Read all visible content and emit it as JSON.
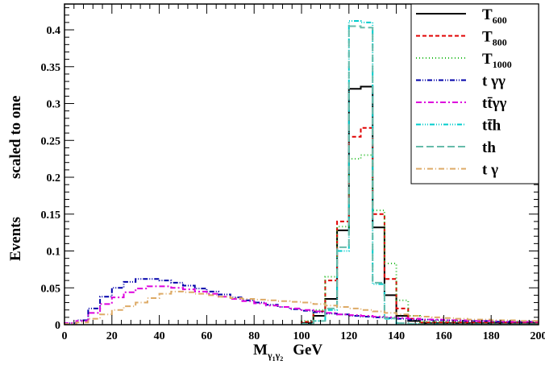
{
  "chart_data": {
    "type": "line",
    "style": "step-histogram",
    "xlabel": {
      "base": "M",
      "sub1": "γ",
      "sub1b": "1",
      "sub2": "γ",
      "sub2b": "2",
      "unit": "GeV"
    },
    "ylabel": {
      "part1": "Events",
      "part2": "scaled to one"
    },
    "xlim": [
      0,
      200
    ],
    "ylim": [
      0,
      0.435
    ],
    "x_ticks": [
      0,
      20,
      40,
      60,
      80,
      100,
      120,
      140,
      160,
      180,
      200
    ],
    "y_ticks": [
      0,
      0.05,
      0.1,
      0.15,
      0.2,
      0.25,
      0.3,
      0.35,
      0.4
    ],
    "y_tick_labels": [
      "0",
      "0.05",
      "0.1",
      "0.15",
      "0.2",
      "0.25",
      "0.3",
      "0.35",
      "0.4"
    ],
    "legend_position": "top-right",
    "grid": false,
    "series": [
      {
        "name": "T600",
        "label_main": "T",
        "label_sub": "600",
        "color": "#000000",
        "dash": "",
        "edges": [
          100,
          105,
          110,
          115,
          120,
          125,
          130,
          135,
          140,
          145,
          150,
          200
        ],
        "values": [
          0.002,
          0.012,
          0.035,
          0.128,
          0.32,
          0.323,
          0.132,
          0.04,
          0.012,
          0.005,
          0.002
        ]
      },
      {
        "name": "T800",
        "label_main": "T",
        "label_sub": "800",
        "color": "#e00000",
        "dash": "5,3",
        "edges": [
          100,
          105,
          110,
          115,
          120,
          125,
          130,
          135,
          140,
          145,
          150,
          200
        ],
        "values": [
          0.004,
          0.018,
          0.06,
          0.14,
          0.255,
          0.267,
          0.15,
          0.062,
          0.022,
          0.008,
          0.003
        ]
      },
      {
        "name": "T1000",
        "label_main": "T",
        "label_sub": "1000",
        "color": "#22bb22",
        "dash": "1,3",
        "edges": [
          100,
          105,
          110,
          115,
          120,
          125,
          130,
          135,
          140,
          145,
          150,
          200
        ],
        "values": [
          0.005,
          0.02,
          0.065,
          0.133,
          0.225,
          0.23,
          0.155,
          0.083,
          0.033,
          0.012,
          0.004
        ]
      },
      {
        "name": "t γγ",
        "label_main": "t γγ",
        "label_sub": "",
        "color": "#0000aa",
        "dash": "6,2,1,2,1,2",
        "edges": [
          0,
          5,
          10,
          15,
          20,
          25,
          30,
          35,
          40,
          45,
          50,
          55,
          60,
          65,
          70,
          75,
          80,
          85,
          90,
          95,
          100,
          105,
          110,
          115,
          120,
          125,
          130,
          135,
          140,
          145,
          150,
          155,
          160,
          165,
          170,
          175,
          180,
          185,
          190,
          195,
          200
        ],
        "values": [
          0.002,
          0.006,
          0.022,
          0.038,
          0.05,
          0.058,
          0.062,
          0.062,
          0.06,
          0.057,
          0.053,
          0.049,
          0.045,
          0.041,
          0.037,
          0.033,
          0.03,
          0.027,
          0.024,
          0.021,
          0.019,
          0.017,
          0.015,
          0.014,
          0.012,
          0.011,
          0.01,
          0.009,
          0.008,
          0.007,
          0.007,
          0.006,
          0.006,
          0.005,
          0.005,
          0.005,
          0.004,
          0.004,
          0.004,
          0.004
        ]
      },
      {
        "name": "tt̄γγ",
        "label_main": "tt̄γγ",
        "label_sub": "",
        "color": "#dd00dd",
        "dash": "7,3,2,3",
        "edges": [
          0,
          5,
          10,
          15,
          20,
          25,
          30,
          35,
          40,
          45,
          50,
          55,
          60,
          65,
          70,
          75,
          80,
          85,
          90,
          95,
          100,
          105,
          110,
          115,
          120,
          125,
          130,
          135,
          140,
          145,
          150,
          155,
          160,
          165,
          170,
          175,
          180,
          185,
          190,
          195,
          200
        ],
        "values": [
          0.002,
          0.005,
          0.016,
          0.028,
          0.037,
          0.044,
          0.049,
          0.052,
          0.052,
          0.05,
          0.048,
          0.045,
          0.042,
          0.038,
          0.035,
          0.032,
          0.029,
          0.026,
          0.024,
          0.022,
          0.02,
          0.018,
          0.016,
          0.014,
          0.013,
          0.012,
          0.011,
          0.01,
          0.009,
          0.008,
          0.007,
          0.007,
          0.006,
          0.006,
          0.005,
          0.005,
          0.005,
          0.004,
          0.004,
          0.004
        ]
      },
      {
        "name": "tt̄h",
        "label_main": "tt̄h",
        "label_sub": "",
        "color": "#00cccc",
        "dash": "6,2,1,2,1,2,1,2",
        "edges": [
          100,
          105,
          110,
          115,
          120,
          125,
          130,
          135,
          140,
          145,
          150,
          200
        ],
        "values": [
          0.001,
          0.005,
          0.02,
          0.1,
          0.412,
          0.41,
          0.055,
          0.008,
          0.002,
          0.001,
          0.0005
        ]
      },
      {
        "name": "th",
        "label_main": "th",
        "label_sub": "",
        "color": "#66bbaa",
        "dash": "9,4",
        "edges": [
          100,
          105,
          110,
          115,
          120,
          125,
          130,
          135,
          140,
          145,
          150,
          200
        ],
        "values": [
          0.001,
          0.005,
          0.022,
          0.105,
          0.405,
          0.403,
          0.057,
          0.009,
          0.002,
          0.001,
          0.0005
        ]
      },
      {
        "name": "t γ",
        "label_main": "t   γ",
        "label_sub": "",
        "color": "#ddaa66",
        "dash": "7,3,1,3",
        "edges": [
          0,
          5,
          10,
          15,
          20,
          25,
          30,
          35,
          40,
          45,
          50,
          55,
          60,
          65,
          70,
          75,
          80,
          85,
          90,
          95,
          100,
          105,
          110,
          115,
          120,
          125,
          130,
          135,
          140,
          145,
          150,
          155,
          160,
          165,
          170,
          175,
          180,
          185,
          190,
          195,
          200
        ],
        "values": [
          0.001,
          0.003,
          0.008,
          0.014,
          0.02,
          0.025,
          0.03,
          0.036,
          0.042,
          0.045,
          0.044,
          0.042,
          0.04,
          0.038,
          0.036,
          0.035,
          0.034,
          0.033,
          0.032,
          0.031,
          0.03,
          0.028,
          0.026,
          0.024,
          0.022,
          0.02,
          0.018,
          0.016,
          0.014,
          0.012,
          0.011,
          0.01,
          0.009,
          0.008,
          0.007,
          0.007,
          0.006,
          0.006,
          0.005,
          0.005
        ]
      }
    ]
  }
}
